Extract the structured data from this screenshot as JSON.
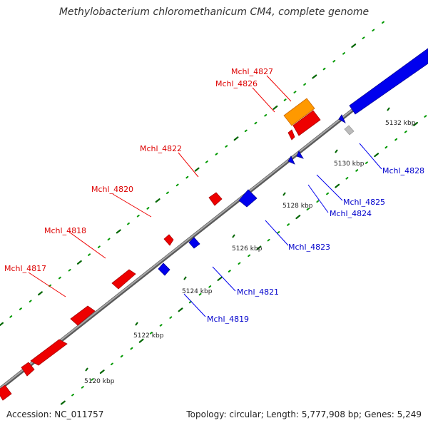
{
  "title": "Methylobacterium chloromethanicum CM4, complete genome",
  "accession": "Accession: NC_011757",
  "topology": "Topology: circular; Length: 5,777,908 bp; Genes: 5,249",
  "colors": {
    "forward": "#ee0000",
    "reverse": "#0000ee",
    "orange": "#ff9900",
    "grey": "#bbbbbb",
    "tick": "#009900",
    "backbone": "#888888"
  },
  "scale_labels": [
    "5120 kbp",
    "5122 kbp",
    "5124 kbp",
    "5126 kbp",
    "5128 kbp",
    "5130 kbp",
    "5132 kbp"
  ],
  "gene_labels_forward": [
    "Mchl_4817",
    "Mchl_4818",
    "Mchl_4820",
    "Mchl_4822",
    "Mchl_4826",
    "Mchl_4827"
  ],
  "gene_labels_reverse": [
    "Mchl_4819",
    "Mchl_4821",
    "Mchl_4823",
    "Mchl_4824",
    "Mchl_4825",
    "Mchl_4828"
  ]
}
